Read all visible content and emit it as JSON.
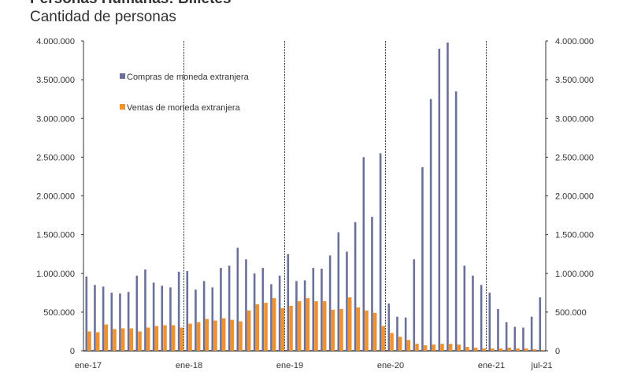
{
  "header": {
    "title": "Personas Humanas: Billetes",
    "subtitle": "Cantidad de personas"
  },
  "chart_data": {
    "type": "bar",
    "title": "Personas Humanas: Billetes",
    "subtitle": "Cantidad de personas",
    "xlabel": "",
    "ylabel": "",
    "ylim": [
      0,
      4000000
    ],
    "y_ticks": [
      "0",
      "500.000",
      "1.000.000",
      "1.500.000",
      "2.000.000",
      "2.500.000",
      "3.000.000",
      "3.500.000",
      "4.000.000"
    ],
    "y_tick_values": [
      0,
      500000,
      1000000,
      1500000,
      2000000,
      2500000,
      3000000,
      3500000,
      4000000
    ],
    "secondary_y_axis": true,
    "x_tick_labels": [
      {
        "label": "ene-17",
        "index": 0
      },
      {
        "label": "ene-18",
        "index": 12
      },
      {
        "label": "ene-19",
        "index": 24
      },
      {
        "label": "ene-20",
        "index": 36
      },
      {
        "label": "ene-21",
        "index": 48
      },
      {
        "label": "jul-21",
        "index": 54
      }
    ],
    "year_separators": [
      12,
      24,
      36,
      48
    ],
    "grid": false,
    "legend_position": "top-left",
    "categories": [
      "ene-17",
      "feb-17",
      "mar-17",
      "abr-17",
      "may-17",
      "jun-17",
      "jul-17",
      "ago-17",
      "sep-17",
      "oct-17",
      "nov-17",
      "dic-17",
      "ene-18",
      "feb-18",
      "mar-18",
      "abr-18",
      "may-18",
      "jun-18",
      "jul-18",
      "ago-18",
      "sep-18",
      "oct-18",
      "nov-18",
      "dic-18",
      "ene-19",
      "feb-19",
      "mar-19",
      "abr-19",
      "may-19",
      "jun-19",
      "jul-19",
      "ago-19",
      "sep-19",
      "oct-19",
      "nov-19",
      "dic-19",
      "ene-20",
      "feb-20",
      "mar-20",
      "abr-20",
      "may-20",
      "jun-20",
      "jul-20",
      "ago-20",
      "sep-20",
      "oct-20",
      "nov-20",
      "dic-20",
      "ene-21",
      "feb-21",
      "mar-21",
      "abr-21",
      "may-21",
      "jun-21",
      "jul-21"
    ],
    "series": [
      {
        "name": "Compras de moneda extranjera",
        "color": "#6b6f9c",
        "values": [
          960000,
          850000,
          830000,
          750000,
          740000,
          760000,
          970000,
          1050000,
          880000,
          840000,
          820000,
          1020000,
          1030000,
          790000,
          900000,
          820000,
          1070000,
          1100000,
          1330000,
          1180000,
          1000000,
          1070000,
          860000,
          970000,
          1250000,
          900000,
          910000,
          1070000,
          1060000,
          1230000,
          1530000,
          1280000,
          1660000,
          2500000,
          1730000,
          2550000,
          610000,
          440000,
          430000,
          1180000,
          2370000,
          3250000,
          3900000,
          3980000,
          3350000,
          1100000,
          970000,
          850000,
          750000,
          540000,
          370000,
          310000,
          300000,
          440000,
          690000
        ]
      },
      {
        "name": "Ventas de moneda extranjera",
        "color": "#f0922b",
        "values": [
          250000,
          240000,
          340000,
          280000,
          290000,
          290000,
          250000,
          300000,
          320000,
          330000,
          330000,
          300000,
          350000,
          370000,
          410000,
          390000,
          420000,
          400000,
          380000,
          520000,
          600000,
          620000,
          680000,
          550000,
          580000,
          640000,
          680000,
          640000,
          640000,
          530000,
          540000,
          690000,
          560000,
          520000,
          490000,
          320000,
          230000,
          180000,
          140000,
          90000,
          70000,
          80000,
          90000,
          90000,
          80000,
          50000,
          40000,
          30000,
          30000,
          30000,
          40000,
          30000,
          30000,
          20000,
          10000
        ]
      }
    ]
  }
}
